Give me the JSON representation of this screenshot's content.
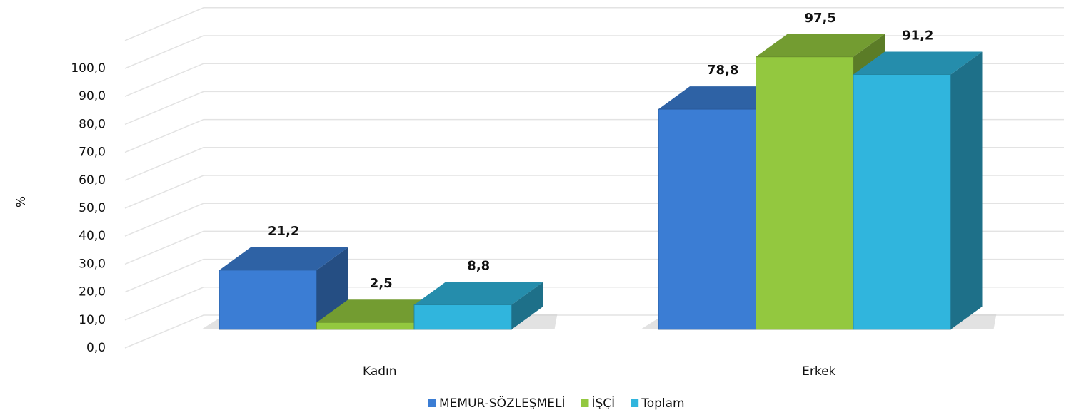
{
  "chart_data": {
    "type": "bar3d",
    "y_axis_label": "%",
    "categories": [
      "Kadın",
      "Erkek"
    ],
    "series": [
      {
        "name": "MEMUR-SÖZLEŞMELİ",
        "color": "#3b7dd4",
        "values": [
          21.2,
          78.8
        ],
        "value_labels": [
          "21,2",
          "78,8"
        ]
      },
      {
        "name": "İŞÇİ",
        "color": "#93c83f",
        "values": [
          2.5,
          97.5
        ],
        "value_labels": [
          "2,5",
          "97,5"
        ]
      },
      {
        "name": "Toplam",
        "color": "#30b5dd",
        "values": [
          8.8,
          91.2
        ],
        "value_labels": [
          "8,8",
          "91,2"
        ]
      }
    ],
    "ylim": [
      0,
      110
    ],
    "yticks": [
      {
        "value": 0,
        "label": "0,0"
      },
      {
        "value": 10,
        "label": "10,0"
      },
      {
        "value": 20,
        "label": "20,0"
      },
      {
        "value": 30,
        "label": "30,0"
      },
      {
        "value": 40,
        "label": "40,0"
      },
      {
        "value": 50,
        "label": "50,0"
      },
      {
        "value": 60,
        "label": "60,0"
      },
      {
        "value": 70,
        "label": "70,0"
      },
      {
        "value": 80,
        "label": "80,0"
      },
      {
        "value": 90,
        "label": "90,0"
      },
      {
        "value": 100,
        "label": "100,0"
      }
    ],
    "grid": true,
    "legend": "bottom"
  }
}
